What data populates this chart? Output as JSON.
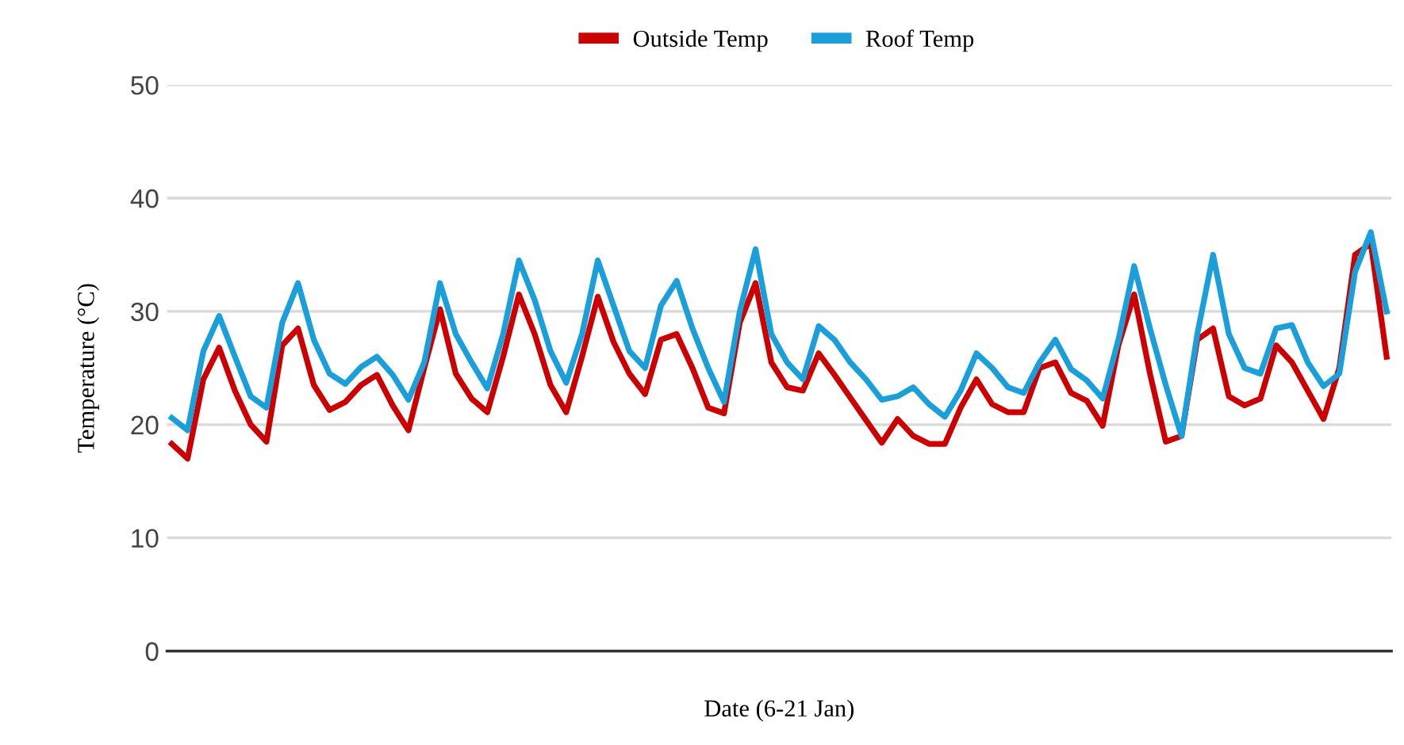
{
  "chart_data": {
    "type": "line",
    "xlabel": "Date (6-21 Jan)",
    "ylabel": "Temperature (°C)",
    "categories": [
      null,
      null,
      null,
      null,
      null,
      null,
      null,
      null,
      null,
      null,
      null,
      null,
      null,
      null,
      null,
      null,
      null,
      null,
      null,
      null,
      null,
      null,
      null,
      null,
      null,
      null,
      null,
      null,
      null,
      null,
      null,
      null,
      null,
      null,
      null,
      null,
      null,
      null,
      null,
      null,
      null,
      null,
      null,
      null,
      null,
      null,
      null,
      null,
      null,
      null,
      null,
      null,
      null,
      null,
      null,
      null,
      null,
      null,
      null,
      null,
      null,
      null,
      null,
      null,
      null,
      null,
      null,
      null,
      null,
      null,
      null,
      null,
      null,
      null,
      null,
      null,
      null,
      null
    ],
    "series": [
      {
        "name": "Outside Temp",
        "color": "#cc0000",
        "values": [
          18.3,
          17,
          24,
          26.8,
          23,
          20,
          18.5,
          27,
          28.5,
          23.5,
          21.3,
          22,
          23.5,
          24.4,
          21.7,
          19.5,
          25,
          30.2,
          24.5,
          22.3,
          21.1,
          26,
          31.5,
          28,
          23.5,
          21.1,
          26,
          31.3,
          27.3,
          24.5,
          22.7,
          27.5,
          28,
          25,
          21.5,
          21,
          29,
          32.5,
          25.5,
          23.3,
          23,
          26.3,
          24.4,
          22.4,
          20.4,
          18.4,
          20.5,
          19,
          18.3,
          18.3,
          21.5,
          24,
          21.8,
          21.1,
          21.1,
          25,
          25.5,
          22.8,
          22.1,
          19.9,
          27,
          31.5,
          24.5,
          18.5,
          19,
          27.5,
          28.5,
          22.5,
          21.7,
          22.3,
          27,
          25.5,
          23,
          20.5,
          25,
          35,
          36,
          26
        ]
      },
      {
        "name": "Roof Temp",
        "color": "#1a9fdb",
        "values": [
          20.6,
          19.5,
          26.5,
          29.6,
          26,
          22.5,
          21.5,
          29,
          32.5,
          27.5,
          24.5,
          23.6,
          25.1,
          26,
          24.4,
          22.2,
          25.5,
          32.5,
          28,
          25.5,
          23.2,
          28,
          34.5,
          31,
          26.5,
          23.7,
          28,
          34.5,
          30.5,
          26.5,
          25,
          30.5,
          32.7,
          28.5,
          25,
          22,
          30,
          35.5,
          28,
          25.5,
          24,
          28.7,
          27.5,
          25.5,
          24,
          22.2,
          22.5,
          23.3,
          21.8,
          20.7,
          23,
          26.3,
          25,
          23.3,
          22.8,
          25.5,
          27.5,
          24.9,
          23.9,
          22.3,
          27.5,
          34,
          28.5,
          23.5,
          19,
          28,
          35,
          28,
          25,
          24.5,
          28.5,
          28.8,
          25.5,
          23.4,
          24.5,
          33.5,
          37,
          30
        ]
      }
    ],
    "ylim": [
      0,
      50
    ],
    "yticks": [
      0,
      10,
      20,
      30,
      40,
      50
    ],
    "grid": "y",
    "legend": "top",
    "tick_labels": "y",
    "line_style": "solid",
    "marker": "none"
  }
}
